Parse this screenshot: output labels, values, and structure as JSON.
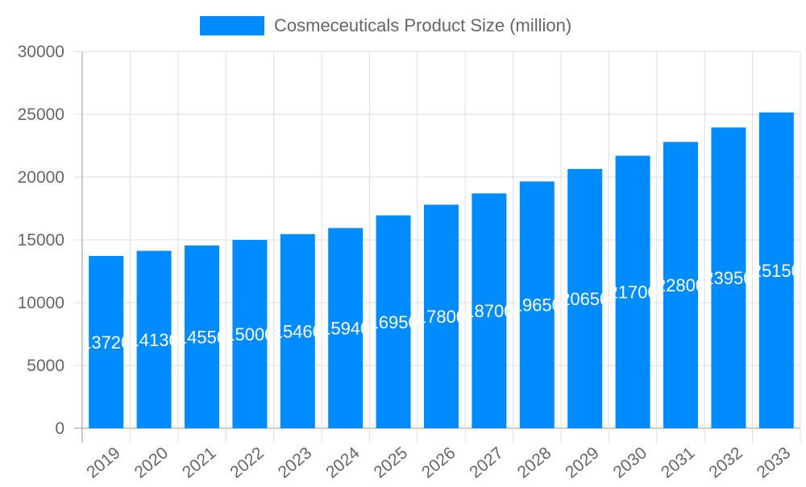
{
  "chart_data": {
    "type": "bar",
    "title": "",
    "xlabel": "",
    "ylabel": "",
    "legend": {
      "position": "top",
      "entries": [
        "Cosmeceuticals Product Size (million)"
      ]
    },
    "categories": [
      "2019",
      "2020",
      "2021",
      "2022",
      "2023",
      "2024",
      "2025",
      "2026",
      "2027",
      "2028",
      "2029",
      "2030",
      "2031",
      "2032",
      "2033"
    ],
    "series": [
      {
        "name": "Cosmeceuticals Product Size (million)",
        "values": [
          13720,
          14130,
          14550,
          15000,
          15460,
          15940,
          16950,
          17800,
          18700,
          19650,
          20650,
          21700,
          22800,
          23950,
          25150
        ],
        "color": "#008cff"
      }
    ],
    "ylim": [
      0,
      30000
    ],
    "yticks": [
      0,
      5000,
      10000,
      15000,
      20000,
      25000,
      30000
    ],
    "grid": true,
    "data_labels": true
  }
}
